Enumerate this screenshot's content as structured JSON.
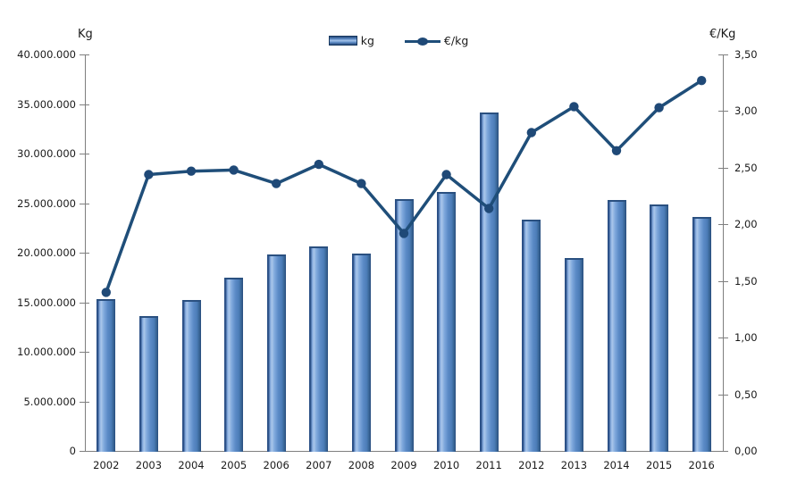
{
  "axes": {
    "left_title": "Kg",
    "right_title": "€/Kg"
  },
  "legend": {
    "kg_label": "kg",
    "eur_label": "€/kg"
  },
  "chart_data": {
    "type": "combo: bar + line",
    "title": "",
    "categories": [
      "2002",
      "2003",
      "2004",
      "2005",
      "2006",
      "2007",
      "2008",
      "2009",
      "2010",
      "2011",
      "2012",
      "2013",
      "2014",
      "2015",
      "2016"
    ],
    "series": [
      {
        "name": "kg",
        "type": "bar",
        "axis": "left",
        "values": [
          15300000,
          13600000,
          15200000,
          17500000,
          19800000,
          20600000,
          19900000,
          25400000,
          26100000,
          34100000,
          23300000,
          19500000,
          25300000,
          24900000,
          23600000
        ]
      },
      {
        "name": "€/kg",
        "type": "line",
        "axis": "right",
        "values": [
          1.4,
          2.44,
          2.47,
          2.48,
          2.36,
          2.53,
          2.36,
          1.92,
          2.44,
          2.14,
          2.81,
          3.04,
          2.65,
          3.03,
          3.27
        ]
      }
    ],
    "left_axis": {
      "title": "Kg",
      "min": 0,
      "max": 40000000,
      "step": 5000000,
      "tick_labels": [
        "40.000.000",
        "35.000.000",
        "30.000.000",
        "25.000.000",
        "20.000.000",
        "15.000.000",
        "10.000.000",
        "5.000.000",
        "0"
      ]
    },
    "right_axis": {
      "title": "€/Kg",
      "min": 0,
      "max": 3.5,
      "step": 0.5,
      "tick_labels": [
        "3,50",
        "3,00",
        "2,50",
        "2,00",
        "1,50",
        "1,00",
        "0,50",
        "0,00"
      ]
    },
    "legend_position": "top-center",
    "grid": false,
    "colors": {
      "bar_fill": "#4f81bd",
      "bar_highlight": "#a9c6ea",
      "bar_edge": "#274a7d",
      "line": "#1f4e79",
      "marker": "#1f4977",
      "axis_line": "#7f7f7f",
      "text": "#1a1a1a"
    }
  }
}
